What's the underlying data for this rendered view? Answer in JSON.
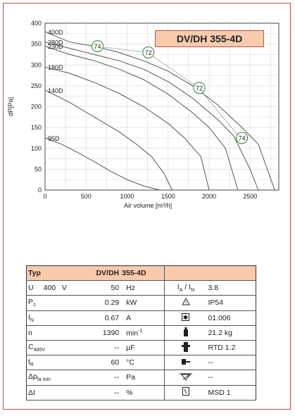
{
  "chart_data": {
    "type": "line",
    "title": "DV/DH 355-4D",
    "xlabel": "Air volume [m³/h]",
    "ylabel": "dP[Pa]",
    "xlim": [
      0,
      2850
    ],
    "ylim": [
      0,
      400
    ],
    "xticks": [
      0,
      500,
      1000,
      1500,
      2000,
      2500
    ],
    "yticks": [
      0,
      50,
      100,
      150,
      200,
      250,
      300,
      350,
      400
    ],
    "grid": true,
    "series": [
      {
        "name": "400D",
        "points": [
          [
            0,
            380
          ],
          [
            300,
            355
          ],
          [
            600,
            345
          ],
          [
            900,
            330
          ],
          [
            1200,
            310
          ],
          [
            1500,
            285
          ],
          [
            1800,
            250
          ],
          [
            2100,
            205
          ],
          [
            2400,
            150
          ],
          [
            2600,
            110
          ],
          [
            2800,
            0
          ]
        ]
      },
      {
        "name": "280D",
        "points": [
          [
            0,
            355
          ],
          [
            300,
            340
          ],
          [
            600,
            325
          ],
          [
            900,
            310
          ],
          [
            1200,
            290
          ],
          [
            1500,
            260
          ],
          [
            1800,
            220
          ],
          [
            2100,
            170
          ],
          [
            2300,
            130
          ],
          [
            2500,
            50
          ],
          [
            2600,
            0
          ]
        ]
      },
      {
        "name": "230D",
        "points": [
          [
            0,
            345
          ],
          [
            300,
            325
          ],
          [
            600,
            310
          ],
          [
            900,
            290
          ],
          [
            1200,
            265
          ],
          [
            1500,
            230
          ],
          [
            1800,
            185
          ],
          [
            2000,
            150
          ],
          [
            2200,
            100
          ],
          [
            2350,
            0
          ]
        ]
      },
      {
        "name": "180D",
        "points": [
          [
            0,
            295
          ],
          [
            300,
            280
          ],
          [
            600,
            258
          ],
          [
            900,
            232
          ],
          [
            1200,
            200
          ],
          [
            1500,
            160
          ],
          [
            1700,
            125
          ],
          [
            1900,
            80
          ],
          [
            2000,
            0
          ]
        ]
      },
      {
        "name": "140D",
        "points": [
          [
            0,
            240
          ],
          [
            300,
            210
          ],
          [
            600,
            175
          ],
          [
            900,
            140
          ],
          [
            1100,
            112
          ],
          [
            1300,
            80
          ],
          [
            1450,
            40
          ],
          [
            1550,
            0
          ]
        ]
      },
      {
        "name": "95D",
        "points": [
          [
            0,
            125
          ],
          [
            200,
            110
          ],
          [
            400,
            90
          ],
          [
            600,
            68
          ],
          [
            800,
            45
          ],
          [
            1000,
            25
          ],
          [
            1200,
            10
          ],
          [
            1400,
            0
          ]
        ]
      }
    ],
    "efficiency_curve": [
      [
        620,
        345
      ],
      [
        1250,
        330
      ],
      [
        1870,
        245
      ],
      [
        2380,
        125
      ]
    ],
    "annotations": [
      {
        "label": "74",
        "x": 640,
        "y": 345
      },
      {
        "label": "72",
        "x": 1260,
        "y": 330
      },
      {
        "label": "72",
        "x": 1880,
        "y": 245
      },
      {
        "label": "74",
        "x": 2400,
        "y": 125
      }
    ]
  },
  "specs": {
    "header": {
      "typ": "Typ",
      "model_a": "DV/DH",
      "model_b": "355-4D"
    },
    "rows": [
      {
        "label": "U",
        "sub": "",
        "extra": "400   V",
        "value": "50",
        "unit": "Hz",
        "icon": "current-ratio",
        "right_label": "I",
        "right_value": "3.8"
      },
      {
        "label": "P",
        "sub": "1",
        "extra": "",
        "value": "0.29",
        "unit": "kW",
        "icon": "warning-triangle-icon",
        "right_value": "IP54"
      },
      {
        "label": "I",
        "sub": "N",
        "extra": "",
        "value": "0.67",
        "unit": "A",
        "icon": "star-box-icon",
        "right_value": "01.006"
      },
      {
        "label": "n",
        "sub": "",
        "extra": "",
        "value": "1390",
        "unit": "min",
        "icon": "weight-icon",
        "right_value": "21.2 kg"
      },
      {
        "label": "C",
        "sub": "400V",
        "extra": "",
        "value": "--",
        "unit": "µF",
        "icon": "thermal-relay-icon",
        "right_value": "RTD 1.2"
      },
      {
        "label": "t",
        "sub": "R",
        "extra": "",
        "value": "60",
        "unit": "°C",
        "icon": "plug-icon",
        "right_value": "--"
      },
      {
        "label": "Δp",
        "sub": "fa min",
        "extra": "",
        "value": "--",
        "unit": "Pa",
        "icon": "damper-icon",
        "right_value": "--"
      },
      {
        "label": "ΔI",
        "sub": "",
        "extra": "",
        "value": "--",
        "unit": "%",
        "icon": "switch-box-icon",
        "right_value": "MSD 1"
      }
    ],
    "ia_in": {
      "a": "A",
      "n": "N"
    },
    "min_sup": "-1"
  }
}
